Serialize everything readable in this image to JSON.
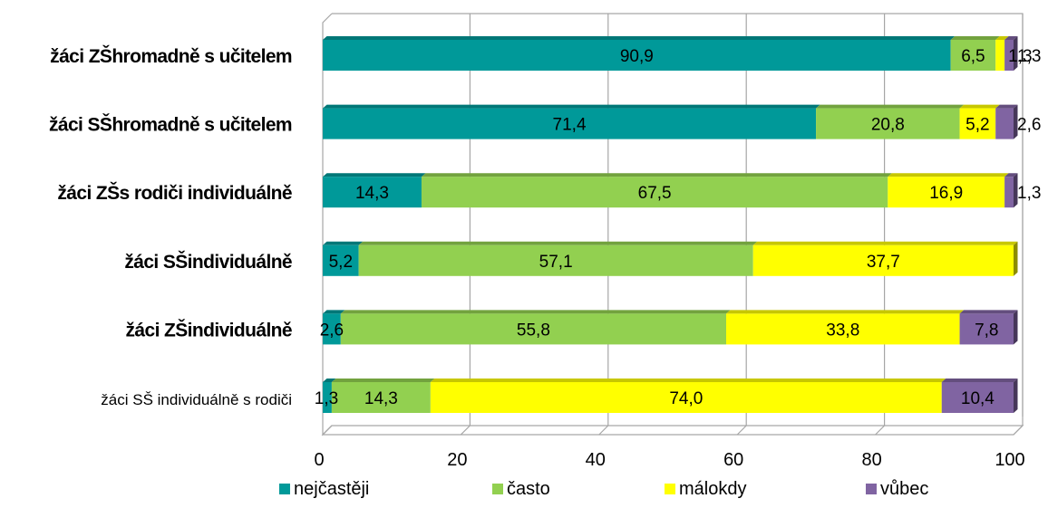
{
  "chart_data": {
    "type": "bar",
    "orientation": "horizontal",
    "stacked": true,
    "stack_mode": "percent",
    "categories": [
      "žáci ZŠhromadně s učitelem",
      "žáci SŠhromadně s učitelem",
      "žáci ZŠs rodiči individuálně",
      "žáci SŠindividuálně",
      "žáci ZŠindividuálně",
      "žáci SŠ individuálně s rodiči"
    ],
    "category_bold": [
      true,
      true,
      true,
      true,
      true,
      false
    ],
    "series": [
      {
        "name": "nejčastěji",
        "color": "#009999",
        "values": [
          90.9,
          71.4,
          14.3,
          5.2,
          2.6,
          1.3
        ],
        "labels": [
          "90,9",
          "71,4",
          "14,3",
          "5,2",
          "2,6",
          "1,3"
        ]
      },
      {
        "name": "často",
        "color": "#92D050",
        "values": [
          6.5,
          20.8,
          67.5,
          57.1,
          55.8,
          14.3
        ],
        "labels": [
          "6,5",
          "20,8",
          "67,5",
          "57,1",
          "55,8",
          "14,3"
        ]
      },
      {
        "name": "málokdy",
        "color": "#FFFF00",
        "values": [
          1.3,
          5.2,
          16.9,
          37.7,
          33.8,
          74.0
        ],
        "labels": [
          "1,3",
          "5,2",
          "16,9",
          "37,7",
          "33,8",
          "74,0"
        ]
      },
      {
        "name": "vůbec",
        "color": "#8064A2",
        "values": [
          1.3,
          2.6,
          1.3,
          0,
          7.8,
          10.4
        ],
        "labels": [
          "1,3",
          "2,6",
          "1,3",
          "",
          "7,8",
          "10,4"
        ]
      }
    ],
    "xlim": [
      0,
      100
    ],
    "xticks": [
      "0",
      "20",
      "40",
      "60",
      "80",
      "100"
    ],
    "grid": true,
    "legend_position": "bottom"
  }
}
